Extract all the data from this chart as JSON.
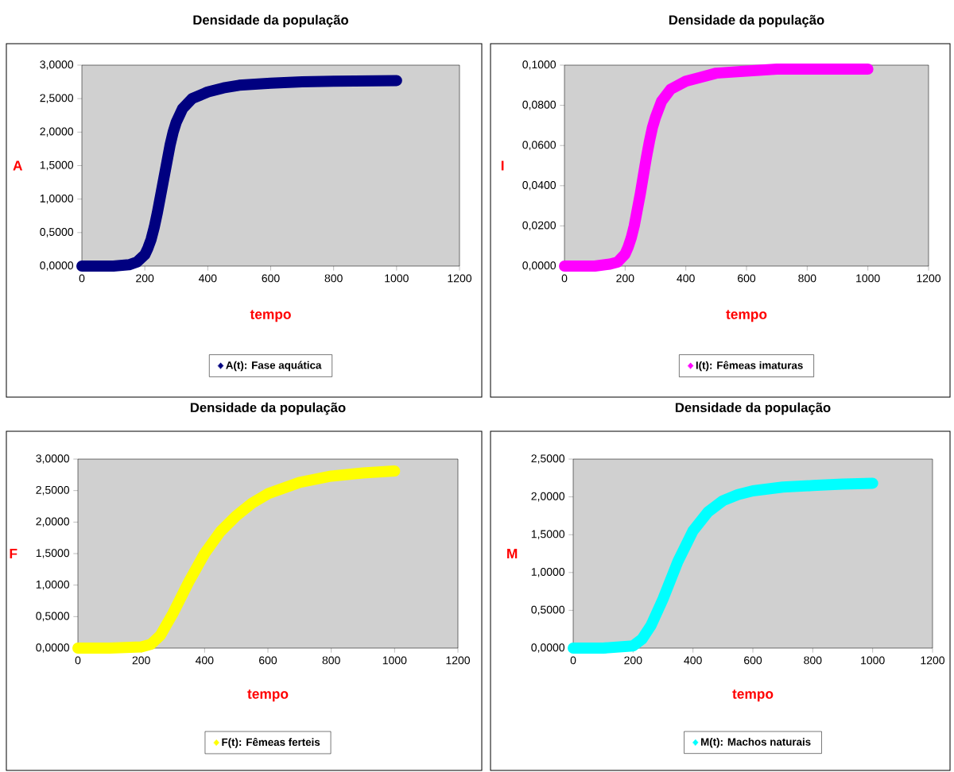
{
  "chart_data": [
    {
      "type": "line",
      "title": "Densidade da população",
      "xlabel": "tempo",
      "ylabel": "A",
      "marker": "diamond",
      "line_style": "solid",
      "legend": "bottom",
      "xlim": [
        0,
        1200
      ],
      "ylim": [
        0,
        3
      ],
      "xticks": [
        0,
        200,
        400,
        600,
        800,
        1000,
        1200
      ],
      "yticks": [
        {
          "value": 0,
          "label": "0,0000"
        },
        {
          "value": 0.5,
          "label": "0,5000"
        },
        {
          "value": 1,
          "label": "1,0000"
        },
        {
          "value": 1.5,
          "label": "1,5000"
        },
        {
          "value": 2,
          "label": "2,0000"
        },
        {
          "value": 2.5,
          "label": "2,5000"
        },
        {
          "value": 3,
          "label": "3,0000"
        }
      ],
      "x": [
        0,
        100,
        150,
        175,
        200,
        210,
        220,
        230,
        240,
        250,
        260,
        270,
        280,
        290,
        300,
        320,
        350,
        400,
        450,
        500,
        600,
        700,
        800,
        1000
      ],
      "series": [
        {
          "name": "A(t): Fase aquática",
          "color": "#000080",
          "values": [
            0,
            0,
            0.02,
            0.06,
            0.17,
            0.27,
            0.4,
            0.58,
            0.8,
            1.05,
            1.3,
            1.55,
            1.8,
            2,
            2.15,
            2.35,
            2.5,
            2.6,
            2.66,
            2.7,
            2.73,
            2.75,
            2.76,
            2.77
          ]
        }
      ]
    },
    {
      "type": "line",
      "title": "Densidade da população",
      "xlabel": "tempo",
      "ylabel": "I",
      "marker": "diamond",
      "line_style": "solid",
      "legend": "bottom",
      "xlim": [
        0,
        1200
      ],
      "ylim": [
        0,
        0.1
      ],
      "xticks": [
        0,
        200,
        400,
        600,
        800,
        1000,
        1200
      ],
      "yticks": [
        {
          "value": 0,
          "label": "0,0000"
        },
        {
          "value": 0.02,
          "label": "0,0200"
        },
        {
          "value": 0.04,
          "label": "0,0400"
        },
        {
          "value": 0.06,
          "label": "0,0600"
        },
        {
          "value": 0.08,
          "label": "0,0800"
        },
        {
          "value": 0.1,
          "label": "0,1000"
        }
      ],
      "x": [
        0,
        100,
        150,
        175,
        200,
        210,
        220,
        230,
        240,
        250,
        260,
        270,
        280,
        290,
        300,
        320,
        350,
        400,
        450,
        500,
        600,
        700,
        800,
        1000
      ],
      "series": [
        {
          "name": "I(t): Fêmeas imaturas",
          "color": "#ff00ff",
          "values": [
            0,
            0,
            0.001,
            0.002,
            0.006,
            0.0095,
            0.014,
            0.02,
            0.028,
            0.036,
            0.045,
            0.054,
            0.062,
            0.069,
            0.074,
            0.082,
            0.088,
            0.092,
            0.094,
            0.096,
            0.097,
            0.098,
            0.098,
            0.098
          ]
        }
      ]
    },
    {
      "type": "line",
      "title": "Densidade da população",
      "xlabel": "tempo",
      "ylabel": "F",
      "marker": "diamond",
      "line_style": "solid",
      "legend": "bottom",
      "xlim": [
        0,
        1200
      ],
      "ylim": [
        0,
        3
      ],
      "xticks": [
        0,
        200,
        400,
        600,
        800,
        1000,
        1200
      ],
      "yticks": [
        {
          "value": 0,
          "label": "0,0000"
        },
        {
          "value": 0.5,
          "label": "0,5000"
        },
        {
          "value": 1,
          "label": "1,0000"
        },
        {
          "value": 1.5,
          "label": "1,5000"
        },
        {
          "value": 2,
          "label": "2,0000"
        },
        {
          "value": 2.5,
          "label": "2,5000"
        },
        {
          "value": 3,
          "label": "3,0000"
        }
      ],
      "x": [
        0,
        100,
        200,
        230,
        260,
        300,
        350,
        400,
        450,
        500,
        550,
        600,
        700,
        800,
        900,
        1000
      ],
      "series": [
        {
          "name": "F(t): Fêmeas ferteis",
          "color": "#ffff00",
          "values": [
            0,
            0,
            0.02,
            0.06,
            0.2,
            0.55,
            1.05,
            1.5,
            1.85,
            2.1,
            2.3,
            2.45,
            2.63,
            2.73,
            2.78,
            2.81
          ]
        }
      ]
    },
    {
      "type": "line",
      "title": "Densidade da população",
      "xlabel": "tempo",
      "ylabel": "M",
      "marker": "diamond",
      "line_style": "solid",
      "legend": "bottom",
      "xlim": [
        0,
        1200
      ],
      "ylim": [
        0,
        2.5
      ],
      "xticks": [
        0,
        200,
        400,
        600,
        800,
        1000,
        1200
      ],
      "yticks": [
        {
          "value": 0,
          "label": "0,0000"
        },
        {
          "value": 0.5,
          "label": "0,5000"
        },
        {
          "value": 1,
          "label": "1,0000"
        },
        {
          "value": 1.5,
          "label": "1,5000"
        },
        {
          "value": 2,
          "label": "2,0000"
        },
        {
          "value": 2.5,
          "label": "2,5000"
        }
      ],
      "x": [
        0,
        100,
        200,
        230,
        260,
        300,
        350,
        400,
        450,
        500,
        550,
        600,
        700,
        800,
        900,
        1000
      ],
      "series": [
        {
          "name": "M(t): Machos naturais",
          "color": "#00ffff",
          "values": [
            0,
            0,
            0.03,
            0.12,
            0.3,
            0.65,
            1.15,
            1.55,
            1.8,
            1.95,
            2.03,
            2.08,
            2.13,
            2.15,
            2.17,
            2.18
          ]
        }
      ]
    }
  ]
}
